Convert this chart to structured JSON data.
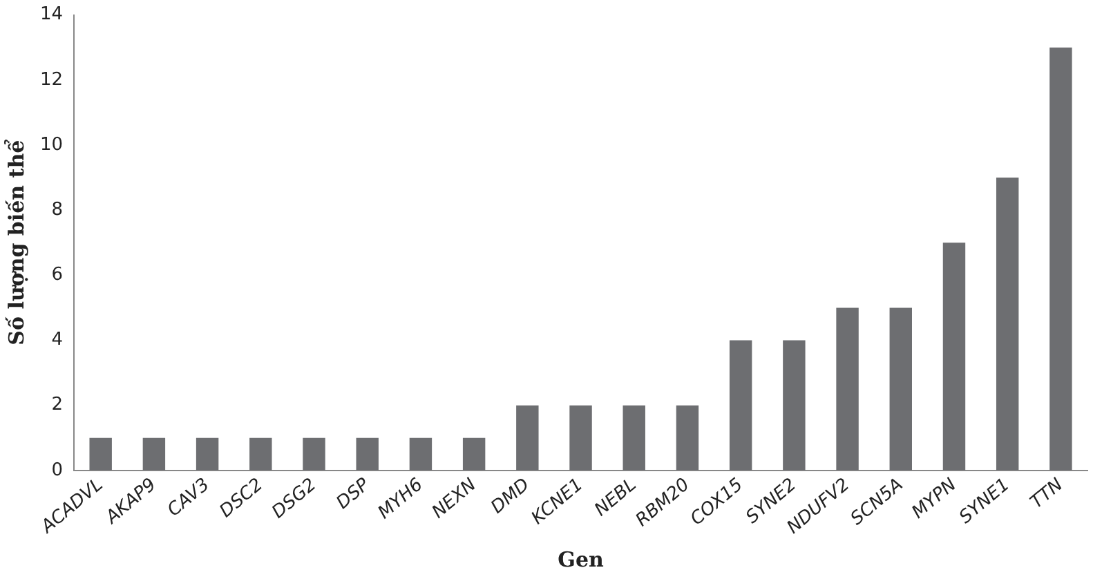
{
  "chart_data": {
    "type": "bar",
    "xlabel": "Gen",
    "ylabel": "Số lượng biến thể",
    "categories": [
      "ACADVL",
      "AKAP9",
      "CAV3",
      "DSC2",
      "DSG2",
      "DSP",
      "MYH6",
      "NEXN",
      "DMD",
      "KCNE1",
      "NEBL",
      "RBM20",
      "COX15",
      "SYNE2",
      "NDUFV2",
      "SCN5A",
      "MYPN",
      "SYNE1",
      "TTN"
    ],
    "values": [
      1,
      1,
      1,
      1,
      1,
      1,
      1,
      1,
      2,
      2,
      2,
      2,
      4,
      4,
      5,
      5,
      7,
      9,
      13
    ],
    "color": "#6d6e71",
    "ylim": [
      0,
      14
    ],
    "yticks": [
      0,
      2,
      4,
      6,
      8,
      10,
      12,
      14
    ],
    "grid": false,
    "legend": false
  }
}
